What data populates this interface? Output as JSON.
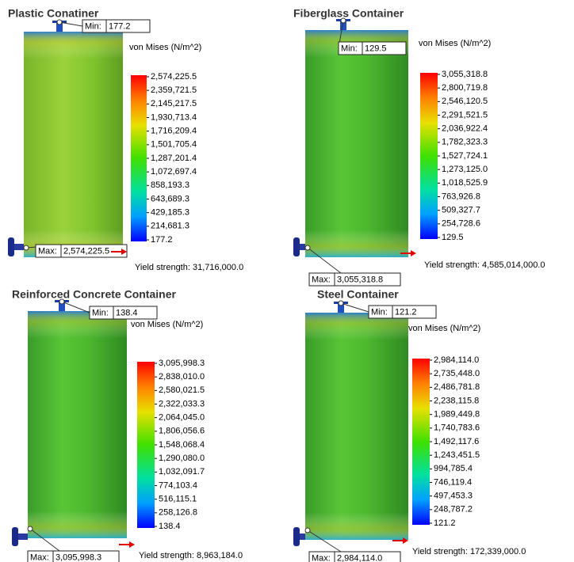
{
  "panels": [
    {
      "title": "Plastic Conatiner",
      "min": {
        "label": "Min:",
        "value": "177.2"
      },
      "max": {
        "label": "Max:",
        "value": "2,574,225.5"
      },
      "legend": {
        "title": "von Mises (N/m^2)",
        "ticks": [
          "2,574,225.5",
          "2,359,721.5",
          "2,145,217.5",
          "1,930,713.4",
          "1,716,209.4",
          "1,501,705.4",
          "1,287,201.4",
          "1,072,697.4",
          "858,193.3",
          "643,689.3",
          "429,185.3",
          "214,681.3",
          "177.2"
        ]
      },
      "yield": "Yield strength: 31,716,000.0"
    },
    {
      "title": "Fiberglass Container",
      "min": {
        "label": "Min:",
        "value": "129.5"
      },
      "max": {
        "label": "Max:",
        "value": "3,055,318.8"
      },
      "legend": {
        "title": "von Mises (N/m^2)",
        "ticks": [
          "3,055,318.8",
          "2,800,719.8",
          "2,546,120.5",
          "2,291,521.5",
          "2,036,922.4",
          "1,782,323.3",
          "1,527,724.1",
          "1,273,125.0",
          "1,018,525.9",
          "763,926.8",
          "509,327.7",
          "254,728.6",
          "129.5"
        ]
      },
      "yield": "Yield strength: 4,585,014,000.0"
    },
    {
      "title": "Reinforced Concrete Container",
      "min": {
        "label": "Min:",
        "value": "138.4"
      },
      "max": {
        "label": "Max:",
        "value": "3,095,998.3"
      },
      "legend": {
        "title": "von Mises (N/m^2)",
        "ticks": [
          "3,095,998.3",
          "2,838,010.0",
          "2,580,021.5",
          "2,322,033.3",
          "2,064,045.0",
          "1,806,056.6",
          "1,548,068.4",
          "1,290,080.0",
          "1,032,091.7",
          "774,103.4",
          "516,115.1",
          "258,126.8",
          "138.4"
        ]
      },
      "yield": "Yield strength: 8,963,184.0"
    },
    {
      "title": "Steel Container",
      "min": {
        "label": "Min:",
        "value": "121.2"
      },
      "max": {
        "label": "Max:",
        "value": "2,984,114.0"
      },
      "legend": {
        "title": "von Mises (N/m^2)",
        "ticks": [
          "2,984,114.0",
          "2,735,448.0",
          "2,486,781.8",
          "2,238,115.8",
          "1,989,449.8",
          "1,740,783.6",
          "1,492,117.6",
          "1,243,451.5",
          "994,785.4",
          "746,119.4",
          "497,453.3",
          "248,787.2",
          "121.2"
        ]
      },
      "yield": "Yield strength: 172,339,000.0"
    }
  ]
}
